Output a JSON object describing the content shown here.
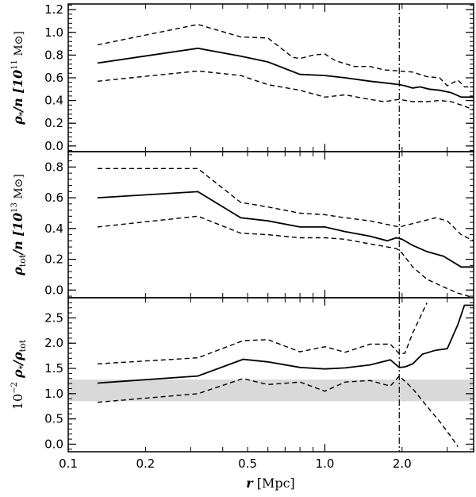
{
  "chart_data": [
    {
      "id": "top",
      "type": "line",
      "ylabel": "ρ*/n [10^11 M⊙]",
      "ylabel_parts": {
        "sym": "ρ",
        "sub": "*",
        "den": "/n [10",
        "exp": "11",
        "unit": " M⊙]"
      },
      "xlabel": "",
      "xscale": "log",
      "xlim": [
        0.1,
        3.8
      ],
      "ylim": [
        -0.05,
        1.25
      ],
      "yticks": [
        "0.0",
        "0.2",
        "0.4",
        "0.6",
        "0.8",
        "1.0",
        "1.2"
      ],
      "vline_x": 1.95,
      "series": [
        {
          "style": "solid",
          "x": [
            0.13,
            0.32,
            0.47,
            0.6,
            0.8,
            1.0,
            1.2,
            1.5,
            1.8,
            1.95,
            2.05,
            2.2,
            2.35,
            2.55,
            2.8,
            3.1,
            3.4,
            3.8
          ],
          "values": [
            0.73,
            0.86,
            0.79,
            0.74,
            0.63,
            0.62,
            0.6,
            0.57,
            0.55,
            0.54,
            0.53,
            0.51,
            0.52,
            0.5,
            0.49,
            0.47,
            0.43,
            0.43
          ]
        },
        {
          "style": "dashed",
          "x": [
            0.13,
            0.32,
            0.47,
            0.6,
            0.75,
            0.8,
            0.9,
            1.0,
            1.1,
            1.3,
            1.5,
            1.7,
            1.95,
            2.2,
            2.5,
            2.8,
            3.0,
            3.3,
            3.5,
            3.8
          ],
          "values": [
            0.89,
            1.07,
            0.96,
            0.95,
            0.78,
            0.77,
            0.8,
            0.81,
            0.75,
            0.7,
            0.7,
            0.67,
            0.66,
            0.65,
            0.61,
            0.6,
            0.53,
            0.58,
            0.52,
            0.52
          ]
        },
        {
          "style": "dashed",
          "x": [
            0.13,
            0.32,
            0.47,
            0.6,
            0.8,
            1.0,
            1.2,
            1.5,
            1.7,
            1.95,
            2.2,
            2.5,
            2.8,
            3.1,
            3.4,
            3.8
          ],
          "values": [
            0.57,
            0.66,
            0.62,
            0.54,
            0.49,
            0.43,
            0.45,
            0.41,
            0.39,
            0.41,
            0.39,
            0.39,
            0.4,
            0.39,
            0.36,
            0.32
          ]
        }
      ]
    },
    {
      "id": "middle",
      "type": "line",
      "ylabel": "ρtot/n [10^13 M⊙]",
      "ylabel_parts": {
        "sym": "ρ",
        "sub": "tot",
        "den": "/n [10",
        "exp": "13",
        "unit": " M⊙]"
      },
      "xlabel": "",
      "xscale": "log",
      "xlim": [
        0.1,
        3.8
      ],
      "ylim": [
        -0.05,
        0.9
      ],
      "yticks": [
        "0.0",
        "0.2",
        "0.4",
        "0.6",
        "0.8"
      ],
      "vline_x": 1.95,
      "series": [
        {
          "style": "solid",
          "x": [
            0.13,
            0.32,
            0.47,
            0.6,
            0.8,
            1.0,
            1.2,
            1.5,
            1.75,
            1.9,
            2.0,
            2.2,
            2.5,
            2.9,
            3.4,
            3.8
          ],
          "values": [
            0.6,
            0.64,
            0.47,
            0.45,
            0.41,
            0.41,
            0.38,
            0.35,
            0.32,
            0.34,
            0.33,
            0.29,
            0.25,
            0.22,
            0.15,
            0.15
          ]
        },
        {
          "style": "dashed",
          "x": [
            0.13,
            0.32,
            0.47,
            0.6,
            0.8,
            1.0,
            1.2,
            1.5,
            1.95,
            2.3,
            2.7,
            3.0,
            3.4,
            3.8
          ],
          "values": [
            0.79,
            0.79,
            0.57,
            0.54,
            0.5,
            0.49,
            0.47,
            0.45,
            0.41,
            0.44,
            0.47,
            0.45,
            0.36,
            0.32
          ]
        },
        {
          "style": "dashed",
          "x": [
            0.13,
            0.32,
            0.47,
            0.6,
            0.8,
            1.0,
            1.2,
            1.5,
            1.9,
            2.0,
            2.2,
            2.5,
            2.9,
            3.3,
            3.8
          ],
          "values": [
            0.41,
            0.48,
            0.37,
            0.36,
            0.34,
            0.34,
            0.33,
            0.3,
            0.27,
            0.24,
            0.15,
            0.07,
            0.02,
            -0.02,
            -0.05
          ]
        }
      ]
    },
    {
      "id": "bottom",
      "type": "line",
      "ylabel": "10^-2 ρ*/ρtot",
      "ylabel_parts": {
        "pre": "10",
        "exp": "−2",
        "sym": "ρ",
        "sub": "*",
        "den": "/ρ",
        "sub2": "tot"
      },
      "xlabel": "r [Mpc]",
      "xscale": "log",
      "xlim": [
        0.1,
        3.8
      ],
      "ylim": [
        -0.15,
        2.9
      ],
      "yticks": [
        "0.0",
        "0.5",
        "1.0",
        "1.5",
        "2.0",
        "2.5"
      ],
      "xticks": [
        "0.1",
        "0.2",
        "0.5",
        "1.0",
        "2.0"
      ],
      "xtick_values": [
        0.1,
        0.2,
        0.5,
        1.0,
        2.0
      ],
      "vline_x": 1.95,
      "band": [
        0.85,
        1.28
      ],
      "series": [
        {
          "style": "solid",
          "x": [
            0.13,
            0.32,
            0.48,
            0.6,
            0.8,
            1.0,
            1.2,
            1.5,
            1.8,
            1.95,
            2.05,
            2.2,
            2.4,
            2.7,
            3.0,
            3.3,
            3.5,
            3.8
          ],
          "values": [
            1.21,
            1.35,
            1.68,
            1.63,
            1.52,
            1.49,
            1.51,
            1.57,
            1.67,
            1.52,
            1.53,
            1.59,
            1.78,
            1.86,
            1.89,
            2.37,
            2.75,
            2.75
          ]
        },
        {
          "style": "dashed",
          "x": [
            0.13,
            0.32,
            0.48,
            0.6,
            0.8,
            1.0,
            1.2,
            1.5,
            1.8,
            1.95,
            2.05,
            2.2,
            2.5
          ],
          "values": [
            1.59,
            1.71,
            2.05,
            2.07,
            1.83,
            1.93,
            1.82,
            1.98,
            1.98,
            1.79,
            1.8,
            2.2,
            2.8
          ]
        },
        {
          "style": "dashed",
          "x": [
            0.13,
            0.32,
            0.48,
            0.6,
            0.8,
            1.0,
            1.2,
            1.5,
            1.8,
            1.95,
            2.2,
            2.5,
            2.8,
            3.1,
            3.3
          ],
          "values": [
            0.83,
            1.0,
            1.3,
            1.18,
            1.23,
            1.05,
            1.23,
            1.26,
            1.15,
            1.35,
            1.1,
            0.75,
            0.45,
            0.15,
            -0.05
          ]
        }
      ]
    }
  ]
}
